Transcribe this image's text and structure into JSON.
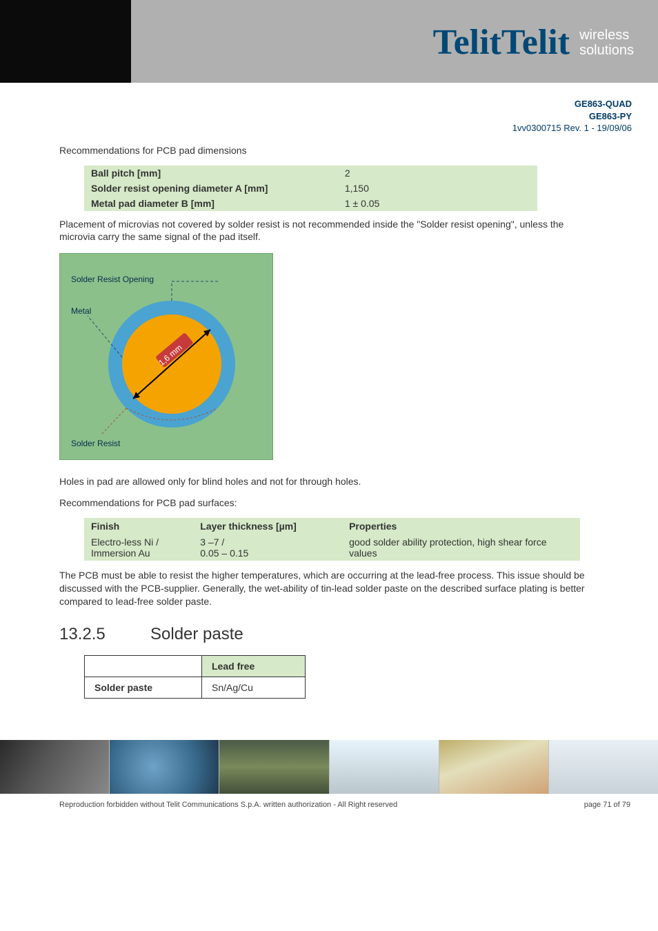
{
  "header": {
    "logo_text": "Telit",
    "tagline_line1": "wireless",
    "tagline_line2": "solutions",
    "colors": {
      "logo": "#004876",
      "accent": "#f3b700",
      "tag": "#ffffff",
      "banner_gray": "#b0b0b0",
      "banner_black": "#0b0b0b"
    }
  },
  "doc_meta": {
    "line1": "GE863-QUAD",
    "line2": "GE863-PY",
    "rev": "1vv0300715 Rev. 1 - 19/09/06"
  },
  "body": {
    "p1": "Recommendations for PCB pad dimensions",
    "table1": {
      "rows": [
        {
          "label": "Ball pitch [mm]",
          "value": "2"
        },
        {
          "label": "Solder resist opening diameter A [mm]",
          "value": "1,150"
        },
        {
          "label": "Metal pad diameter B [mm]",
          "value": "1 ± 0.05"
        }
      ],
      "bg_color": "#d6e9c8"
    },
    "p2": "Placement of microvias not covered by solder resist is not recommended inside the \"Solder resist opening\", unless the microvia carry the same signal of the pad itself.",
    "figure": {
      "bg_color": "#8bc08b",
      "label_sro": "Solder Resist Opening",
      "label_metal": "Metal",
      "dim_text": "1,6 mm",
      "label_sr": "Solder Resist",
      "pad_color": "#f5a300",
      "ring_color": "#4aa3d1",
      "arrow_color": "#000000",
      "dim_bg": "#c73a3a"
    },
    "p3": "Holes in pad are allowed only for blind holes and not for through holes.",
    "p4": "Recommendations for PCB pad surfaces:",
    "table2": {
      "headers": [
        "Finish",
        "Layer thickness [µm]",
        "Properties"
      ],
      "row": {
        "finish": "Electro-less Ni / Immersion Au",
        "thickness": "3 –7 /\n0.05 – 0.15",
        "properties": "good solder ability protection, high shear force values"
      },
      "bg_color": "#d6e9c8"
    },
    "p5": "The PCB must be able to resist the higher temperatures, which are occurring at the lead-free process. This issue should be discussed with the PCB-supplier. Generally, the wet-ability of tin-lead solder paste on the described surface plating is better compared to lead-free solder paste.",
    "heading": {
      "num": "13.2.5",
      "title": "Solder paste"
    },
    "table3": {
      "header_blank": "",
      "header_leadfree": "Lead free",
      "row_label": "Solder paste",
      "row_value": "Sn/Ag/Cu",
      "green_bg": "#d6e9c8"
    }
  },
  "footer": {
    "left": "Reproduction forbidden without Telit Communications S.p.A. written authorization - All Right reserved",
    "right": "page 71 of 79"
  }
}
